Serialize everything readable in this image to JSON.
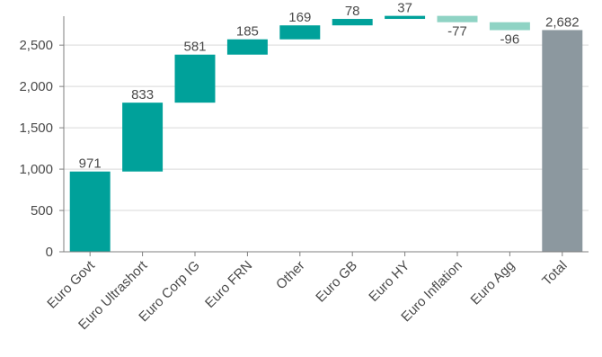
{
  "chart_data": {
    "type": "bar",
    "subtype": "waterfall",
    "title": "",
    "xlabel": "",
    "ylabel": "",
    "categories": [
      "Euro Govt",
      "Euro Ultrashort",
      "Euro Corp IG",
      "Euro FRN",
      "Other",
      "Euro GB",
      "Euro HY",
      "Euro Inflation",
      "Euro Agg",
      "Total"
    ],
    "values": [
      971,
      833,
      581,
      185,
      169,
      78,
      37,
      -77,
      -96,
      2682
    ],
    "data_labels": [
      "971",
      "833",
      "581",
      "185",
      "169",
      "78",
      "37",
      "-77",
      "-96",
      "2,682"
    ],
    "total_index": 9,
    "ylim": [
      0,
      2850
    ],
    "yticks": [
      0,
      500,
      1000,
      1500,
      2000,
      2500
    ],
    "ytick_labels": [
      "0",
      "500",
      "1,000",
      "1,500",
      "2,000",
      "2,500"
    ],
    "grid": true,
    "colors": {
      "positive": "#00a19a",
      "negative": "#8fd3c4",
      "total": "#8c989f",
      "grid": "#d9d9d9",
      "axis": "#7f7f7f",
      "text": "#4a4a4a"
    }
  }
}
